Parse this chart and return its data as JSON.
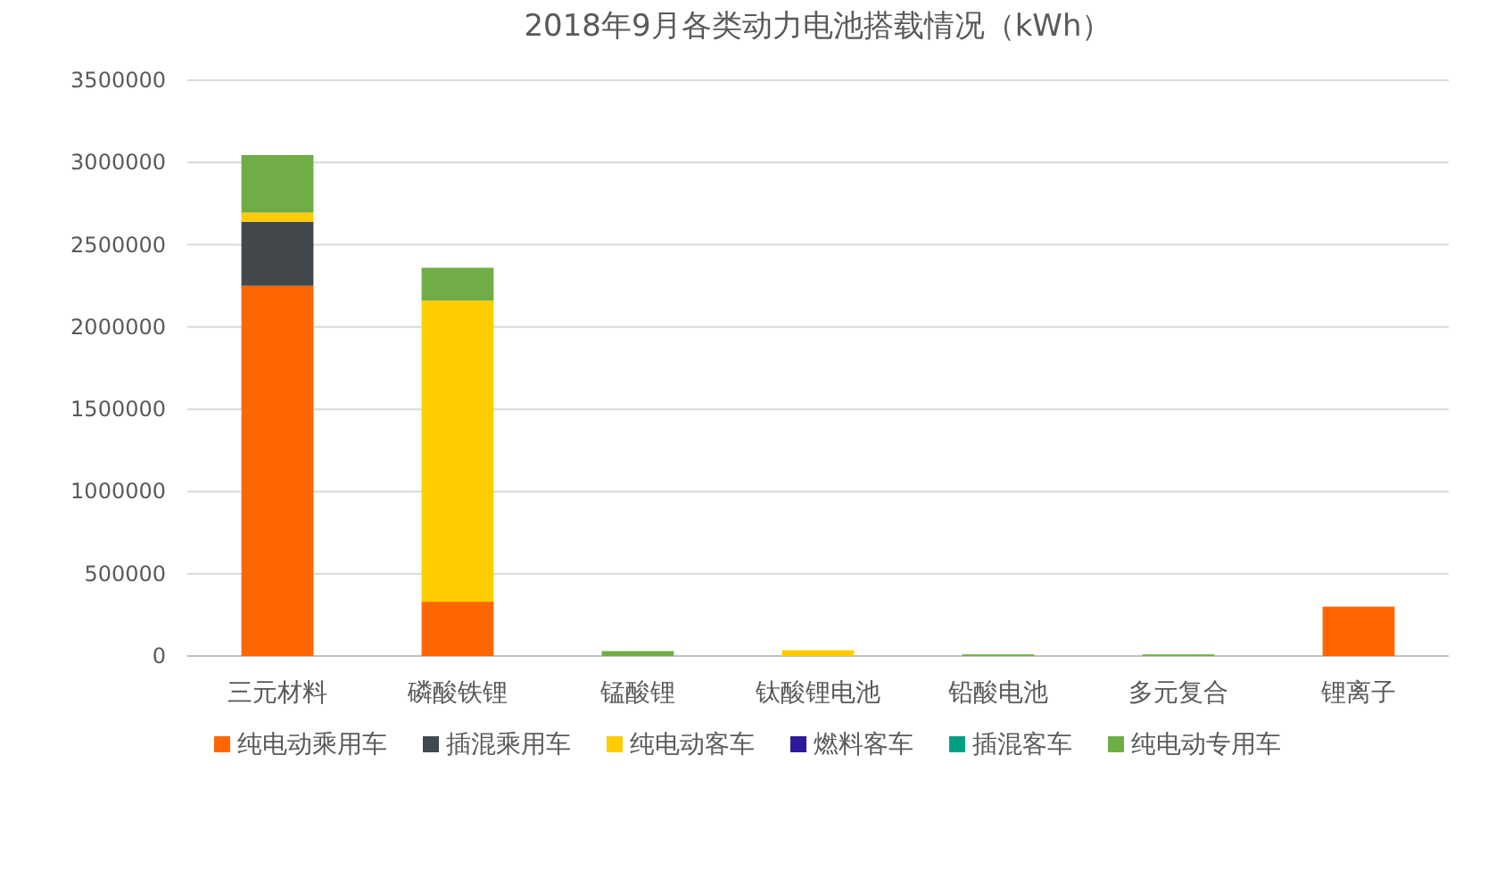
{
  "chart_data": {
    "type": "bar",
    "title": "2018年9月各类动力电池搭载情况（kWh）",
    "categories": [
      "三元材料",
      "磷酸铁锂",
      "锰酸锂",
      "钛酸锂电池",
      "铅酸电池",
      "多元复合",
      "锂离子"
    ],
    "stacked": true,
    "ylim": [
      0,
      3500000
    ],
    "yticks": [
      0,
      500000,
      1000000,
      1500000,
      2000000,
      2500000,
      3000000,
      3500000
    ],
    "grid": "y",
    "legend": "bottom",
    "series": [
      {
        "name": "纯电动乘用车",
        "color": "#ff6600",
        "values": [
          2250000,
          330000,
          0,
          0,
          0,
          0,
          300000
        ]
      },
      {
        "name": "插混乘用车",
        "color": "#43484d",
        "values": [
          390000,
          0,
          0,
          0,
          0,
          0,
          0
        ]
      },
      {
        "name": "纯电动客车",
        "color": "#ffcc00",
        "values": [
          55000,
          1830000,
          0,
          35000,
          0,
          0,
          0
        ]
      },
      {
        "name": "燃料客车",
        "color": "#2e1a99",
        "values": [
          0,
          0,
          0,
          0,
          0,
          0,
          0
        ]
      },
      {
        "name": "插混客车",
        "color": "#00a085",
        "values": [
          0,
          0,
          0,
          0,
          0,
          0,
          0
        ]
      },
      {
        "name": "纯电动专用车",
        "color": "#70ad47",
        "values": [
          350000,
          200000,
          30000,
          0,
          10000,
          10000,
          0
        ]
      }
    ]
  }
}
